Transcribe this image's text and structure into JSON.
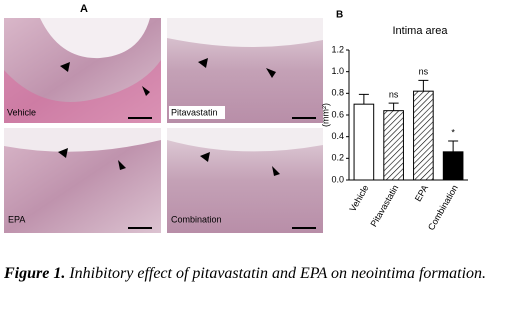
{
  "panel_a": {
    "label": "A",
    "images": [
      {
        "label": "Vehicle"
      },
      {
        "label": "Pitavastatin"
      },
      {
        "label": "EPA"
      },
      {
        "label": "Combination"
      }
    ]
  },
  "chart_data": {
    "type": "bar",
    "panel_label": "B",
    "title": "Intima area",
    "y_label": "(mm²)",
    "categories": [
      "Vehicle",
      "Pitavastatin",
      "EPA",
      "Combination"
    ],
    "values": [
      0.7,
      0.64,
      0.82,
      0.26
    ],
    "errors": [
      0.09,
      0.07,
      0.1,
      0.1
    ],
    "annotations": [
      null,
      "ns",
      "ns",
      "*"
    ],
    "bar_styles": [
      "open",
      "hatched",
      "hatched",
      "filled"
    ],
    "ylim": [
      0,
      1.2
    ],
    "yticks": [
      {
        "value": 0,
        "label": "0.0"
      },
      0.2,
      0.4,
      0.6,
      0.8,
      {
        "value": 1,
        "label": "1.0"
      },
      1.2
    ]
  },
  "caption": {
    "figure_label": "Figure 1.",
    "text": "Inhibitory effect of pitavastatin and EPA on neointima formation."
  }
}
